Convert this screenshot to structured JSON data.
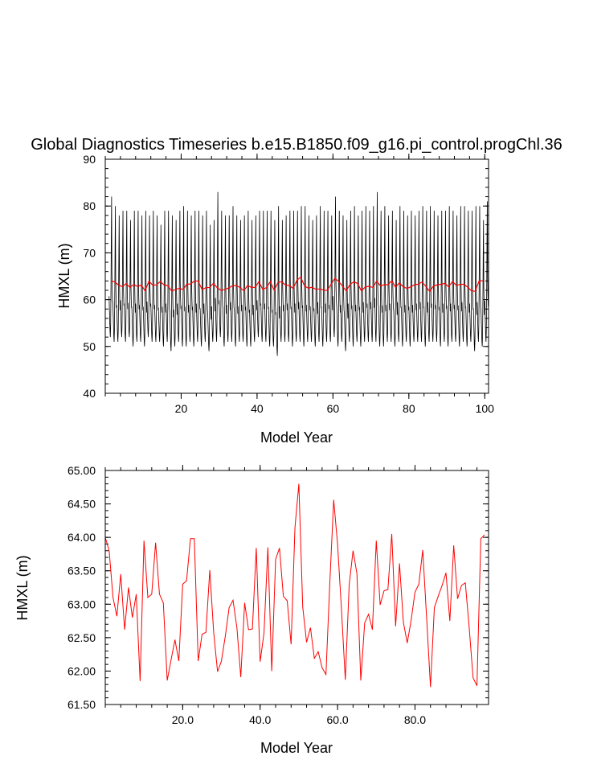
{
  "chart_data": [
    {
      "type": "line",
      "title": "Global Diagnostics Timeseries b.e15.B1850.f09_g16.pi_control.progChl.36",
      "xlabel": "Model Year",
      "ylabel": "HMXL (m)",
      "xlim": [
        0,
        101
      ],
      "ylim": [
        40,
        90
      ],
      "x_tick_labels": [
        "20",
        "40",
        "60",
        "80",
        "100"
      ],
      "y_tick_labels": [
        "40",
        "50",
        "60",
        "70",
        "80",
        "90"
      ],
      "grid": false,
      "legend": "none",
      "monthly_cycle": [
        62,
        60,
        58,
        56,
        55,
        57,
        63,
        72,
        79,
        66,
        63,
        61
      ],
      "series": [
        {
          "color": "#000000",
          "values_note": "monthly",
          "peaks": [
            82,
            80,
            78,
            79,
            79,
            77,
            79,
            79,
            78,
            79,
            78,
            79,
            78,
            76,
            79,
            79,
            78,
            77,
            79,
            80,
            79,
            78,
            79,
            79,
            78,
            79,
            76,
            77,
            83,
            79,
            78,
            78,
            80,
            78,
            77,
            78,
            79,
            77,
            78,
            79,
            79,
            79,
            79,
            77,
            80,
            77,
            78,
            79,
            79,
            79,
            80,
            80,
            78,
            77,
            78,
            80,
            79,
            79,
            78,
            82,
            79,
            78,
            77,
            79,
            80,
            78,
            79,
            80,
            79,
            80,
            83,
            79,
            80,
            78,
            79,
            77,
            80,
            79,
            78,
            79,
            78,
            79,
            80,
            79,
            80,
            79,
            78,
            79,
            79,
            80,
            79,
            78,
            80,
            80,
            79,
            79,
            80,
            80,
            77,
            81,
            80
          ],
          "troughs": [
            52,
            51,
            51,
            52,
            51,
            52,
            50,
            51,
            51,
            50,
            52,
            51,
            51,
            51,
            50,
            51,
            49,
            50,
            51,
            50,
            50,
            51,
            50,
            51,
            50,
            51,
            49,
            51,
            51,
            52,
            50,
            51,
            51,
            50,
            51,
            51,
            50,
            50,
            51,
            52,
            51,
            51,
            50,
            50,
            48,
            51,
            51,
            51,
            50,
            51,
            51,
            50,
            51,
            51,
            50,
            51,
            50,
            51,
            51,
            52,
            50,
            51,
            49,
            51,
            50,
            51,
            50,
            51,
            51,
            51,
            51,
            50,
            50,
            51,
            51,
            50,
            51,
            50,
            51,
            50,
            51,
            51,
            51,
            50,
            51,
            51,
            51,
            50,
            51,
            50,
            51,
            51,
            50,
            51,
            50,
            51,
            49,
            51,
            50,
            51,
            52
          ]
        },
        {
          "color": "#ff0000",
          "values": [
            64.0,
            63.8,
            63.1,
            62.8,
            63.45,
            62.6,
            63.25,
            62.8,
            63.15,
            61.85,
            63.95,
            63.1,
            63.15,
            63.9,
            63.15,
            63.0,
            61.85,
            62.15,
            62.45,
            62.15,
            63.3,
            63.35,
            63.98,
            63.98,
            62.15,
            62.55,
            62.6,
            63.5,
            62.55,
            62.0,
            62.15,
            62.5,
            62.95,
            63.05,
            62.6,
            61.9,
            63.0,
            62.62,
            62.63,
            63.85,
            62.15,
            62.6,
            63.85,
            62.0,
            63.65,
            63.85,
            63.1,
            63.05,
            62.4,
            64.15,
            64.82,
            62.95,
            62.45,
            62.65,
            62.2,
            62.3,
            62.05,
            61.95,
            63.3,
            64.55,
            63.9,
            62.9,
            61.87,
            63.25,
            63.8,
            63.45,
            61.85,
            62.7,
            62.85,
            62.6,
            63.95,
            62.95,
            63.2,
            63.2,
            64.05,
            62.65,
            63.6,
            62.75,
            62.4,
            62.75,
            63.2,
            63.3,
            63.8,
            62.8,
            61.75,
            62.95,
            63.15,
            63.3,
            63.47,
            62.75,
            63.88,
            63.05,
            63.25,
            63.3,
            62.65,
            61.9,
            61.78,
            63.98,
            64.05
          ]
        }
      ]
    },
    {
      "type": "line",
      "title": "",
      "xlabel": "Model Year",
      "ylabel": "HMXL (m)",
      "xlim": [
        0,
        99
      ],
      "ylim": [
        61.5,
        65.0
      ],
      "x_tick_labels": [
        "20.0",
        "40.0",
        "60.0",
        "80.0"
      ],
      "y_tick_labels": [
        "61.50",
        "62.00",
        "62.50",
        "63.00",
        "63.50",
        "64.00",
        "64.50",
        "65.00"
      ],
      "grid": false,
      "legend": "none",
      "series": [
        {
          "color": "#ff0000",
          "values": [
            64.0,
            63.8,
            63.1,
            62.82,
            63.45,
            62.62,
            63.25,
            62.8,
            63.15,
            61.85,
            63.95,
            63.1,
            63.15,
            63.92,
            63.15,
            63.02,
            61.86,
            62.17,
            62.47,
            62.15,
            63.3,
            63.35,
            63.98,
            63.98,
            62.15,
            62.55,
            62.58,
            63.51,
            62.58,
            61.99,
            62.15,
            62.52,
            62.95,
            63.06,
            62.65,
            61.91,
            63.02,
            62.62,
            62.63,
            63.84,
            62.14,
            62.57,
            63.85,
            62.0,
            63.67,
            63.84,
            63.12,
            63.05,
            62.4,
            64.15,
            64.8,
            62.96,
            62.43,
            62.65,
            62.19,
            62.29,
            62.05,
            61.95,
            63.32,
            64.56,
            63.9,
            62.93,
            61.87,
            63.29,
            63.8,
            63.46,
            61.86,
            62.72,
            62.85,
            62.62,
            63.95,
            62.99,
            63.2,
            63.22,
            64.05,
            62.67,
            63.61,
            62.73,
            62.42,
            62.76,
            63.18,
            63.3,
            63.81,
            62.8,
            61.76,
            62.95,
            63.12,
            63.28,
            63.47,
            62.75,
            63.88,
            63.08,
            63.28,
            63.32,
            62.65,
            61.9,
            61.78,
            63.98,
            64.04
          ]
        }
      ]
    }
  ]
}
